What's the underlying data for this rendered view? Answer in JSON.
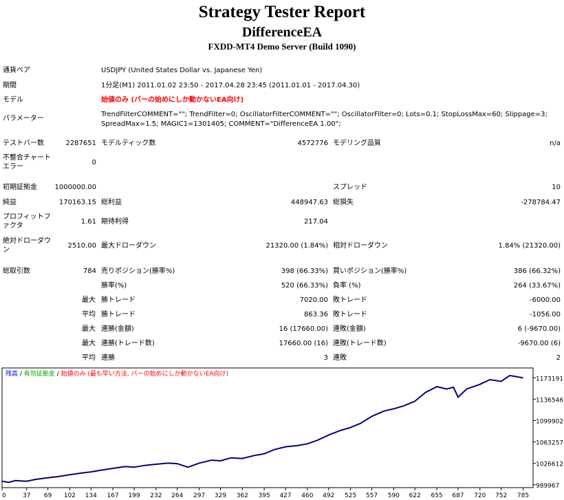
{
  "report": {
    "title": "Strategy Tester Report",
    "subtitle": "DifferenceEA",
    "server": "FXDD-MT4 Demo Server (Build 1090)"
  },
  "info": {
    "symbol_label": "通貨ペア",
    "symbol_value": "USDJPY (United States Dollar vs. Japanese Yen)",
    "period_label": "期間",
    "period_value": "1分足(M1) 2011.01.02 23:50 - 2017.04.28 23:45 (2011.01.01 - 2017.04.30)",
    "model_label": "モデル",
    "model_value": "始値のみ (バーの始めにしか動かないEA向け)",
    "params_label": "パラメーター",
    "params_line1": "TrendFilterCOMMENT=\"\"; TrendFilter=0; OscillatorFilterCOMMENT=\"\"; OscillatorFilter=0; Lots=0.1; StopLossMax=60; Slippage=3;",
    "params_line2": "SpreadMax=1.5; MAGIC1=1301405; COMMENT=\"DifferenceEA 1.00\";"
  },
  "stats": {
    "bars_label": "テストバー数",
    "bars_value": "2287651",
    "ticks_label": "モデルティック数",
    "ticks_value": "4572776",
    "quality_label": "モデリング品質",
    "quality_value": "n/a",
    "mismatch_label": "不整合チャートエラー",
    "mismatch_value": "0",
    "deposit_label": "初期証拠金",
    "deposit_value": "1000000.00",
    "spread_label": "スプレッド",
    "spread_value": "10",
    "net_label": "純益",
    "net_value": "170163.15",
    "gross_profit_label": "総利益",
    "gross_profit_value": "448947.63",
    "gross_loss_label": "総損失",
    "gross_loss_value": "-278784.47",
    "pf_label": "プロフィットファクタ",
    "pf_value": "1.61",
    "expected_label": "期待利得",
    "expected_value": "217.04",
    "abs_dd_label": "絶対ドローダウン",
    "abs_dd_value": "2510.00",
    "max_dd_label": "最大ドローダウン",
    "max_dd_value": "21320.00 (1.84%)",
    "rel_dd_label": "相対ドローダウン",
    "rel_dd_value": "1.84% (21320.00)",
    "trades_label": "総取引数",
    "trades_value": "784",
    "short_label": "売りポジション(勝率%)",
    "short_value": "398 (66.33%)",
    "long_label": "買いポジション(勝率%)",
    "long_value": "386 (66.32%)",
    "win_label": "勝率(%)",
    "win_value": "520 (66.33%)",
    "loss_label": "負率 (%)",
    "loss_value": "264 (33.67%)",
    "largest_label": "最大",
    "largest_win_label": "勝トレード",
    "largest_win_value": "7020.00",
    "largest_loss_label": "敗トレード",
    "largest_loss_value": "-6000.00",
    "average_label": "平均",
    "average_win_label": "勝トレード",
    "average_win_value": "863.36",
    "average_loss_label": "敗トレード",
    "average_loss_value": "-1056.00",
    "max1_label": "最大",
    "consec_wins_label": "連勝(金額)",
    "consec_wins_value": "16 (17660.00)",
    "consec_losses_label": "連敗(金額)",
    "consec_losses_value": "6 (-9670.00)",
    "max2_label": "最大",
    "consec_profit_label": "連勝(トレード数)",
    "consec_profit_value": "17660.00 (16)",
    "consec_loss_label": "連敗(トレード数)",
    "consec_loss_value": "-9670.00 (6)",
    "avg2_label": "平均",
    "avg_consec_wins_label": "連勝",
    "avg_consec_wins_value": "3",
    "avg_consec_losses_label": "連敗",
    "avg_consec_losses_value": "2"
  },
  "chart_data": {
    "type": "line",
    "legend": [
      {
        "text": "残高",
        "color": "#0000ff"
      },
      {
        "text": " / ",
        "color": "#000000"
      },
      {
        "text": "有効証拠金",
        "color": "#00aa00"
      },
      {
        "text": " / ",
        "color": "#000000"
      },
      {
        "text": "始値のみ (最も早い方法, バーの始めにしか動かないEA向け)",
        "color": "#ff0000"
      }
    ],
    "x_ticks": [
      0,
      37,
      69,
      102,
      134,
      167,
      199,
      232,
      264,
      297,
      329,
      362,
      395,
      427,
      460,
      492,
      525,
      557,
      590,
      622,
      655,
      687,
      720,
      752,
      785
    ],
    "y_ticks": [
      989967,
      1026612,
      1063257,
      1099902,
      1136546,
      1173191
    ],
    "xlim": [
      0,
      800
    ],
    "ylim": [
      985000,
      1190000
    ],
    "line_color": "#000080",
    "series": [
      {
        "x": [
          0,
          10,
          20,
          37,
          50,
          69,
          85,
          102,
          120,
          134,
          150,
          167,
          185,
          199,
          215,
          232,
          250,
          264,
          280,
          297,
          315,
          329,
          345,
          362,
          380,
          395,
          410,
          427,
          445,
          460,
          475,
          492,
          510,
          525,
          540,
          557,
          575,
          590,
          605,
          622,
          638,
          655,
          670,
          680,
          687,
          700,
          720,
          735,
          752,
          765,
          785
        ],
        "y": [
          996000,
          994000,
          997000,
          996000,
          999000,
          1002000,
          1004000,
          1007000,
          1010000,
          1012000,
          1015000,
          1018000,
          1021000,
          1020000,
          1023000,
          1025000,
          1027000,
          1026000,
          1020000,
          1027000,
          1032000,
          1031000,
          1036000,
          1035000,
          1040000,
          1043000,
          1050000,
          1055000,
          1057000,
          1060000,
          1066000,
          1075000,
          1083000,
          1088000,
          1095000,
          1107000,
          1116000,
          1120000,
          1125000,
          1133000,
          1148000,
          1158000,
          1154000,
          1157000,
          1140000,
          1154000,
          1162000,
          1170000,
          1167000,
          1177000,
          1173000
        ]
      }
    ]
  }
}
